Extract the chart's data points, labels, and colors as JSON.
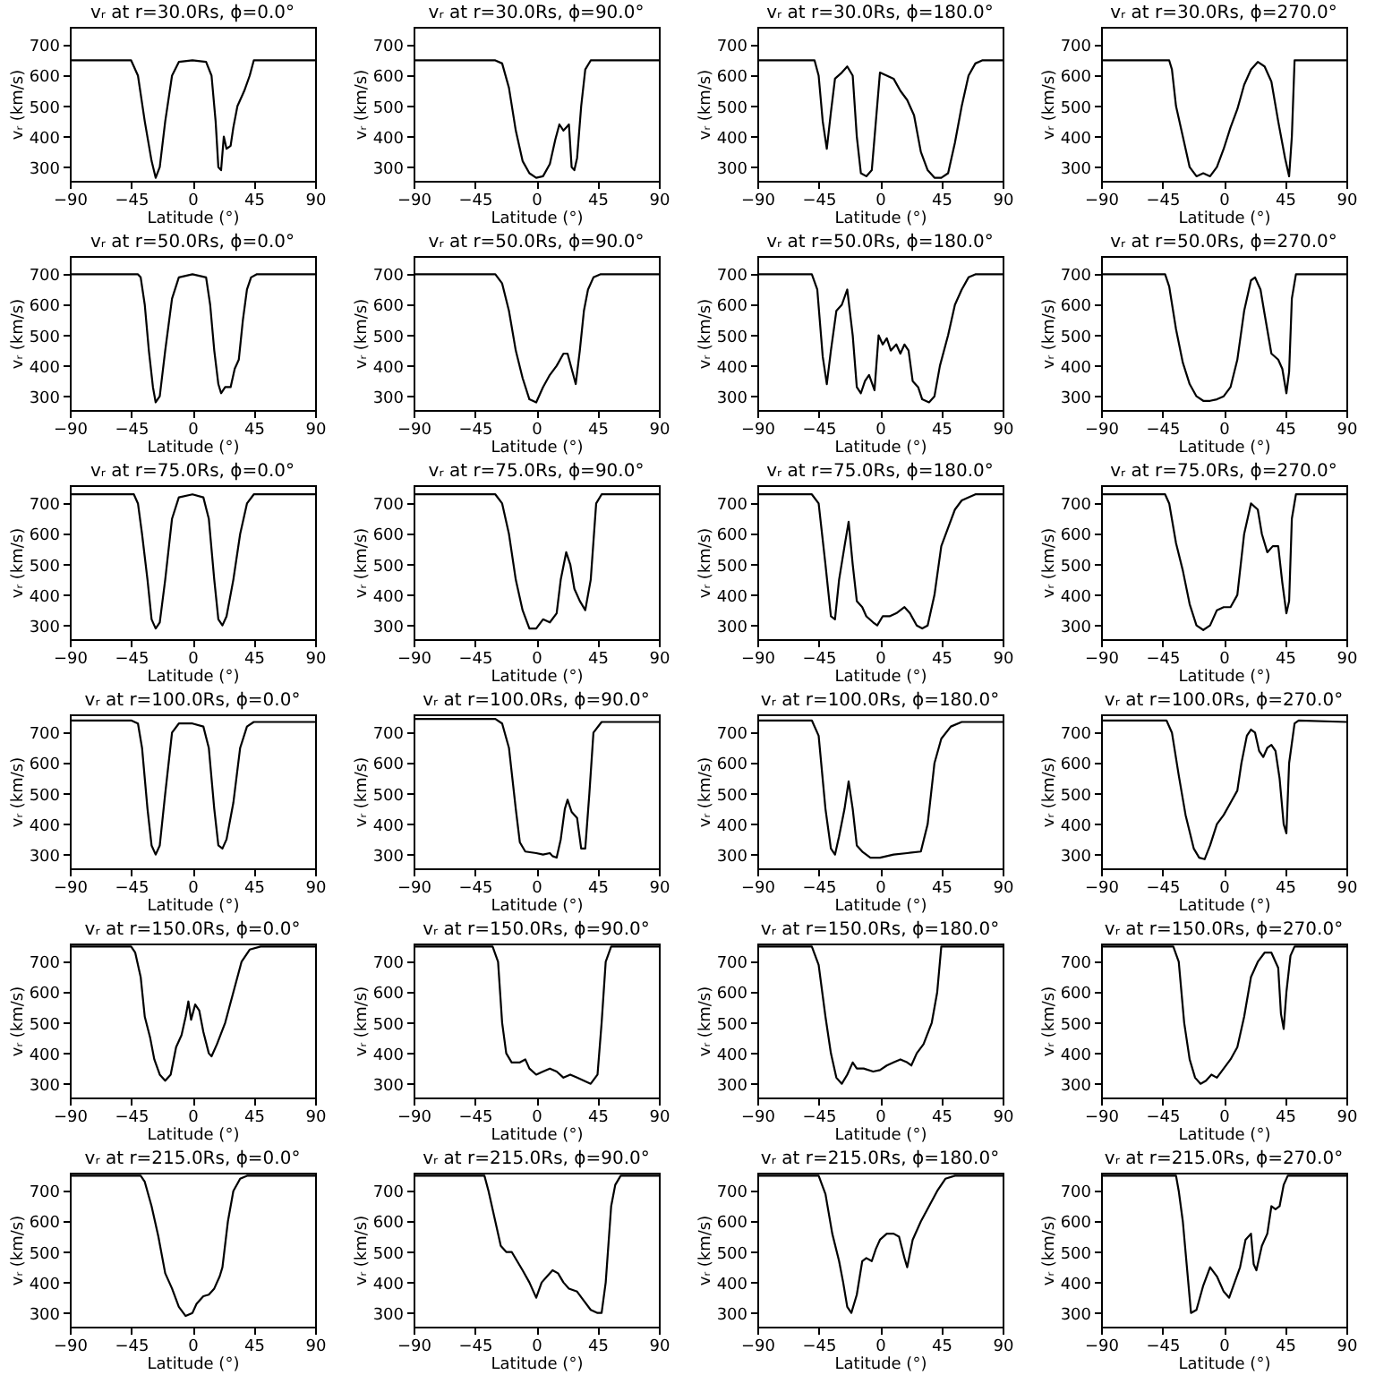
{
  "chart_data": [
    {
      "type": "line",
      "title": "vᵣ at r=30.0Rs, ϕ=0.0°",
      "xlabel": "Latitude (°)",
      "ylabel": "vᵣ (km/s)",
      "color": "#000000",
      "xlim": [
        -90,
        90
      ],
      "xticks": [
        -90,
        -45,
        0,
        45,
        90
      ],
      "ylim": [
        255,
        760
      ],
      "yticks": [
        300,
        400,
        500,
        600,
        700
      ],
      "x": [
        -90,
        -45,
        -40,
        -35,
        -30,
        -27,
        -24,
        -20,
        -15,
        -10,
        0,
        10,
        14,
        17,
        19,
        21,
        23,
        25,
        28,
        30,
        33,
        35,
        38,
        42,
        45,
        90
      ],
      "values": [
        650,
        650,
        600,
        450,
        320,
        265,
        300,
        450,
        600,
        645,
        650,
        645,
        600,
        450,
        300,
        290,
        400,
        360,
        370,
        430,
        500,
        520,
        550,
        600,
        650,
        650
      ]
    },
    {
      "type": "line",
      "title": "vᵣ at r=30.0Rs, ϕ=90.0°",
      "xlabel": "Latitude (°)",
      "ylabel": "vᵣ (km/s)",
      "color": "#000000",
      "xlim": [
        -90,
        90
      ],
      "xticks": [
        -90,
        -45,
        0,
        45,
        90
      ],
      "ylim": [
        255,
        760
      ],
      "yticks": [
        300,
        400,
        500,
        600,
        700
      ],
      "x": [
        -90,
        -30,
        -25,
        -20,
        -15,
        -10,
        -5,
        0,
        5,
        10,
        14,
        17,
        20,
        22,
        24,
        26,
        28,
        30,
        33,
        36,
        40,
        90
      ],
      "values": [
        650,
        650,
        640,
        560,
        420,
        320,
        280,
        265,
        270,
        310,
        390,
        440,
        420,
        430,
        440,
        300,
        290,
        330,
        500,
        620,
        650,
        650
      ]
    },
    {
      "type": "line",
      "title": "vᵣ at r=30.0Rs, ϕ=180.0°",
      "xlabel": "Latitude (°)",
      "ylabel": "vᵣ (km/s)",
      "color": "#000000",
      "xlim": [
        -90,
        90
      ],
      "xticks": [
        -90,
        -45,
        0,
        45,
        90
      ],
      "ylim": [
        255,
        760
      ],
      "yticks": [
        300,
        400,
        500,
        600,
        700
      ],
      "x": [
        -90,
        -48,
        -45,
        -42,
        -39,
        -36,
        -33,
        -28,
        -24,
        -20,
        -17,
        -14,
        -10,
        -6,
        -3,
        0,
        5,
        10,
        15,
        20,
        25,
        30,
        35,
        40,
        45,
        50,
        55,
        60,
        65,
        70,
        75,
        90
      ],
      "values": [
        650,
        650,
        600,
        450,
        360,
        480,
        590,
        610,
        630,
        600,
        400,
        280,
        270,
        290,
        450,
        610,
        600,
        590,
        550,
        520,
        470,
        350,
        290,
        265,
        265,
        280,
        380,
        500,
        600,
        640,
        650,
        650
      ]
    },
    {
      "type": "line",
      "title": "vᵣ at r=30.0Rs, ϕ=270.0°",
      "xlabel": "Latitude (°)",
      "ylabel": "vᵣ (km/s)",
      "color": "#000000",
      "xlim": [
        -90,
        90
      ],
      "xticks": [
        -90,
        -45,
        0,
        45,
        90
      ],
      "ylim": [
        255,
        760
      ],
      "yticks": [
        300,
        400,
        500,
        600,
        700
      ],
      "x": [
        -90,
        -40,
        -38,
        -35,
        -30,
        -25,
        -20,
        -15,
        -10,
        -5,
        0,
        5,
        10,
        15,
        20,
        25,
        30,
        35,
        40,
        45,
        48,
        50,
        52,
        90
      ],
      "values": [
        650,
        650,
        620,
        500,
        400,
        300,
        270,
        280,
        270,
        300,
        360,
        430,
        490,
        570,
        620,
        645,
        630,
        580,
        450,
        330,
        270,
        400,
        650,
        650
      ]
    },
    {
      "type": "line",
      "title": "vᵣ at r=50.0Rs, ϕ=0.0°",
      "xlabel": "Latitude (°)",
      "ylabel": "vᵣ (km/s)",
      "color": "#000000",
      "xlim": [
        -90,
        90
      ],
      "xticks": [
        -90,
        -45,
        0,
        45,
        90
      ],
      "ylim": [
        255,
        760
      ],
      "yticks": [
        300,
        400,
        500,
        600,
        700
      ],
      "x": [
        -90,
        -40,
        -38,
        -35,
        -32,
        -29,
        -27,
        -24,
        -20,
        -15,
        -10,
        0,
        10,
        13,
        16,
        19,
        21,
        24,
        28,
        31,
        34,
        37,
        40,
        43,
        47,
        90
      ],
      "values": [
        700,
        700,
        690,
        600,
        450,
        330,
        280,
        300,
        450,
        620,
        690,
        700,
        690,
        600,
        450,
        340,
        310,
        330,
        330,
        390,
        420,
        550,
        650,
        690,
        700,
        700
      ]
    },
    {
      "type": "line",
      "title": "vᵣ at r=50.0Rs, ϕ=90.0°",
      "xlabel": "Latitude (°)",
      "ylabel": "vᵣ (km/s)",
      "color": "#000000",
      "xlim": [
        -90,
        90
      ],
      "xticks": [
        -90,
        -45,
        0,
        45,
        90
      ],
      "ylim": [
        255,
        760
      ],
      "yticks": [
        300,
        400,
        500,
        600,
        700
      ],
      "x": [
        -90,
        -30,
        -25,
        -20,
        -15,
        -10,
        -5,
        0,
        5,
        10,
        15,
        20,
        23,
        26,
        29,
        32,
        35,
        38,
        42,
        47,
        90
      ],
      "values": [
        700,
        700,
        670,
        580,
        450,
        360,
        290,
        280,
        330,
        370,
        400,
        440,
        440,
        390,
        340,
        450,
        580,
        650,
        690,
        700,
        700
      ]
    },
    {
      "type": "line",
      "title": "vᵣ at r=50.0Rs, ϕ=180.0°",
      "xlabel": "Latitude (°)",
      "ylabel": "vᵣ (km/s)",
      "color": "#000000",
      "xlim": [
        -90,
        90
      ],
      "xticks": [
        -90,
        -45,
        0,
        45,
        90
      ],
      "ylim": [
        255,
        760
      ],
      "yticks": [
        300,
        400,
        500,
        600,
        700
      ],
      "x": [
        -90,
        -50,
        -46,
        -42,
        -39,
        -36,
        -32,
        -28,
        -24,
        -20,
        -17,
        -14,
        -11,
        -8,
        -4,
        -1,
        2,
        5,
        8,
        12,
        15,
        18,
        21,
        24,
        28,
        31,
        36,
        40,
        44,
        50,
        55,
        60,
        65,
        70,
        90
      ],
      "values": [
        700,
        700,
        650,
        430,
        340,
        450,
        580,
        600,
        650,
        500,
        330,
        310,
        350,
        370,
        320,
        500,
        470,
        490,
        450,
        470,
        440,
        470,
        450,
        350,
        330,
        290,
        280,
        300,
        400,
        500,
        600,
        650,
        690,
        700,
        700
      ]
    },
    {
      "type": "line",
      "title": "vᵣ at r=50.0Rs, ϕ=270.0°",
      "xlabel": "Latitude (°)",
      "ylabel": "vᵣ (km/s)",
      "color": "#000000",
      "xlim": [
        -90,
        90
      ],
      "xticks": [
        -90,
        -45,
        0,
        45,
        90
      ],
      "ylim": [
        255,
        760
      ],
      "yticks": [
        300,
        400,
        500,
        600,
        700
      ],
      "x": [
        -90,
        -43,
        -40,
        -35,
        -30,
        -25,
        -20,
        -15,
        -10,
        -5,
        0,
        5,
        10,
        15,
        20,
        23,
        27,
        30,
        35,
        40,
        43,
        46,
        48,
        50,
        53,
        90
      ],
      "values": [
        700,
        700,
        660,
        520,
        410,
        340,
        300,
        285,
        285,
        290,
        300,
        330,
        420,
        580,
        680,
        690,
        650,
        570,
        440,
        420,
        390,
        310,
        380,
        620,
        700,
        700
      ]
    },
    {
      "type": "line",
      "title": "vᵣ at r=75.0Rs, ϕ=0.0°",
      "xlabel": "Latitude (°)",
      "ylabel": "vᵣ (km/s)",
      "color": "#000000",
      "xlim": [
        -90,
        90
      ],
      "xticks": [
        -90,
        -45,
        0,
        45,
        90
      ],
      "ylim": [
        255,
        760
      ],
      "yticks": [
        300,
        400,
        500,
        600,
        700
      ],
      "x": [
        -90,
        -43,
        -40,
        -37,
        -33,
        -30,
        -27,
        -24,
        -20,
        -15,
        -10,
        0,
        8,
        12,
        16,
        19,
        22,
        25,
        30,
        35,
        40,
        45,
        90
      ],
      "values": [
        730,
        730,
        700,
        600,
        450,
        320,
        290,
        310,
        450,
        650,
        720,
        730,
        720,
        650,
        450,
        320,
        300,
        330,
        450,
        600,
        700,
        730,
        730
      ]
    },
    {
      "type": "line",
      "title": "vᵣ at r=75.0Rs, ϕ=90.0°",
      "xlabel": "Latitude (°)",
      "ylabel": "vᵣ (km/s)",
      "color": "#000000",
      "xlim": [
        -90,
        90
      ],
      "xticks": [
        -90,
        -45,
        0,
        45,
        90
      ],
      "ylim": [
        255,
        760
      ],
      "yticks": [
        300,
        400,
        500,
        600,
        700
      ],
      "x": [
        -90,
        -30,
        -25,
        -20,
        -15,
        -10,
        -5,
        0,
        5,
        10,
        15,
        18,
        22,
        25,
        28,
        32,
        36,
        40,
        44,
        48,
        90
      ],
      "values": [
        730,
        730,
        700,
        600,
        450,
        350,
        290,
        290,
        320,
        310,
        340,
        450,
        540,
        500,
        420,
        380,
        350,
        450,
        700,
        730,
        730
      ]
    },
    {
      "type": "line",
      "title": "vᵣ at r=75.0Rs, ϕ=180.0°",
      "xlabel": "Latitude (°)",
      "ylabel": "vᵣ (km/s)",
      "color": "#000000",
      "xlim": [
        -90,
        90
      ],
      "xticks": [
        -90,
        -45,
        0,
        45,
        90
      ],
      "ylim": [
        255,
        760
      ],
      "yticks": [
        300,
        400,
        500,
        600,
        700
      ],
      "x": [
        -90,
        -50,
        -45,
        -40,
        -36,
        -33,
        -30,
        -26,
        -23,
        -20,
        -17,
        -13,
        -10,
        -5,
        -2,
        2,
        7,
        12,
        18,
        22,
        27,
        31,
        35,
        40,
        45,
        50,
        55,
        60,
        70,
        90
      ],
      "values": [
        730,
        730,
        700,
        500,
        330,
        320,
        450,
        560,
        640,
        500,
        380,
        360,
        330,
        310,
        300,
        330,
        330,
        340,
        360,
        340,
        300,
        290,
        300,
        400,
        560,
        620,
        680,
        710,
        730,
        730
      ]
    },
    {
      "type": "line",
      "title": "vᵣ at r=75.0Rs, ϕ=270.0°",
      "xlabel": "Latitude (°)",
      "ylabel": "vᵣ (km/s)",
      "color": "#000000",
      "xlim": [
        -90,
        90
      ],
      "xticks": [
        -90,
        -45,
        0,
        45,
        90
      ],
      "ylim": [
        255,
        760
      ],
      "yticks": [
        300,
        400,
        500,
        600,
        700
      ],
      "x": [
        -90,
        -43,
        -40,
        -35,
        -30,
        -25,
        -20,
        -15,
        -10,
        -5,
        0,
        5,
        10,
        15,
        20,
        25,
        28,
        32,
        36,
        40,
        43,
        46,
        48,
        50,
        53,
        90
      ],
      "values": [
        730,
        730,
        700,
        570,
        480,
        370,
        300,
        285,
        300,
        350,
        360,
        360,
        400,
        600,
        700,
        680,
        600,
        540,
        560,
        560,
        440,
        340,
        380,
        650,
        730,
        730
      ]
    },
    {
      "type": "line",
      "title": "vᵣ at r=100.0Rs, ϕ=0.0°",
      "xlabel": "Latitude (°)",
      "ylabel": "vᵣ (km/s)",
      "color": "#000000",
      "xlim": [
        -90,
        90
      ],
      "xticks": [
        -90,
        -45,
        0,
        45,
        90
      ],
      "ylim": [
        255,
        760
      ],
      "yticks": [
        300,
        400,
        500,
        600,
        700
      ],
      "x": [
        -90,
        -45,
        -40,
        -37,
        -33,
        -30,
        -27,
        -24,
        -20,
        -15,
        -10,
        0,
        8,
        12,
        16,
        19,
        22,
        25,
        30,
        35,
        40,
        45,
        90
      ],
      "values": [
        740,
        740,
        730,
        650,
        450,
        330,
        300,
        330,
        500,
        700,
        730,
        730,
        720,
        650,
        450,
        330,
        320,
        350,
        470,
        650,
        720,
        735,
        735
      ]
    },
    {
      "type": "line",
      "title": "vᵣ at r=100.0Rs, ϕ=90.0°",
      "xlabel": "Latitude (°)",
      "ylabel": "vᵣ (km/s)",
      "color": "#000000",
      "xlim": [
        -90,
        90
      ],
      "xticks": [
        -90,
        -45,
        0,
        45,
        90
      ],
      "ylim": [
        255,
        760
      ],
      "yticks": [
        300,
        400,
        500,
        600,
        700
      ],
      "x": [
        -90,
        -30,
        -25,
        -20,
        -15,
        -12,
        -8,
        0,
        5,
        10,
        12,
        15,
        18,
        21,
        23,
        26,
        30,
        33,
        36,
        39,
        42,
        48,
        90
      ],
      "values": [
        745,
        745,
        730,
        650,
        450,
        340,
        310,
        305,
        300,
        305,
        295,
        290,
        350,
        450,
        480,
        440,
        420,
        320,
        320,
        500,
        700,
        735,
        735
      ]
    },
    {
      "type": "line",
      "title": "vᵣ at r=100.0Rs, ϕ=180.0°",
      "xlabel": "Latitude (°)",
      "ylabel": "vᵣ (km/s)",
      "color": "#000000",
      "xlim": [
        -90,
        90
      ],
      "xticks": [
        -90,
        -45,
        0,
        45,
        90
      ],
      "ylim": [
        255,
        760
      ],
      "yticks": [
        300,
        400,
        500,
        600,
        700
      ],
      "x": [
        -90,
        -50,
        -45,
        -40,
        -36,
        -33,
        -30,
        -26,
        -23,
        -20,
        -17,
        -13,
        -7,
        0,
        10,
        20,
        30,
        35,
        40,
        45,
        52,
        60,
        90
      ],
      "values": [
        740,
        740,
        690,
        450,
        320,
        300,
        360,
        450,
        540,
        450,
        330,
        310,
        290,
        290,
        300,
        305,
        310,
        400,
        600,
        680,
        720,
        735,
        735
      ]
    },
    {
      "type": "line",
      "title": "vᵣ at r=100.0Rs, ϕ=270.0°",
      "xlabel": "Latitude (°)",
      "ylabel": "vᵣ (km/s)",
      "color": "#000000",
      "xlim": [
        -90,
        90
      ],
      "xticks": [
        -90,
        -45,
        0,
        45,
        90
      ],
      "ylim": [
        255,
        760
      ],
      "yticks": [
        300,
        400,
        500,
        600,
        700
      ],
      "x": [
        -90,
        -42,
        -38,
        -33,
        -28,
        -22,
        -18,
        -14,
        -10,
        -5,
        0,
        5,
        10,
        13,
        17,
        20,
        23,
        26,
        29,
        32,
        35,
        38,
        41,
        44,
        46,
        48,
        52,
        55,
        90
      ],
      "values": [
        740,
        740,
        700,
        560,
        430,
        320,
        290,
        285,
        330,
        400,
        430,
        470,
        510,
        600,
        690,
        710,
        700,
        640,
        620,
        650,
        660,
        640,
        550,
        400,
        370,
        600,
        730,
        740,
        735
      ]
    },
    {
      "type": "line",
      "title": "vᵣ at r=150.0Rs, ϕ=0.0°",
      "xlabel": "Latitude (°)",
      "ylabel": "vᵣ (km/s)",
      "color": "#000000",
      "xlim": [
        -90,
        90
      ],
      "xticks": [
        -90,
        -45,
        0,
        45,
        90
      ],
      "ylim": [
        255,
        760
      ],
      "yticks": [
        300,
        400,
        500,
        600,
        700
      ],
      "x": [
        -90,
        -45,
        -42,
        -38,
        -35,
        -31,
        -28,
        -24,
        -20,
        -16,
        -12,
        -8,
        -5,
        -3,
        -1,
        2,
        5,
        8,
        12,
        14,
        18,
        24,
        30,
        36,
        42,
        50,
        90
      ],
      "values": [
        750,
        750,
        730,
        650,
        520,
        450,
        380,
        330,
        310,
        330,
        420,
        460,
        520,
        570,
        510,
        560,
        540,
        470,
        400,
        390,
        430,
        500,
        600,
        700,
        740,
        750,
        750
      ]
    },
    {
      "type": "line",
      "title": "vᵣ at r=150.0Rs, ϕ=90.0°",
      "xlabel": "Latitude (°)",
      "ylabel": "vᵣ (km/s)",
      "color": "#000000",
      "xlim": [
        -90,
        90
      ],
      "xticks": [
        -90,
        -45,
        0,
        45,
        90
      ],
      "ylim": [
        255,
        760
      ],
      "yticks": [
        300,
        400,
        500,
        600,
        700
      ],
      "x": [
        -90,
        -32,
        -28,
        -25,
        -22,
        -18,
        -12,
        -8,
        -5,
        0,
        5,
        10,
        15,
        20,
        25,
        30,
        35,
        40,
        45,
        48,
        51,
        55,
        90
      ],
      "values": [
        750,
        750,
        700,
        500,
        400,
        370,
        370,
        380,
        350,
        330,
        340,
        350,
        340,
        320,
        330,
        320,
        310,
        300,
        330,
        500,
        700,
        750,
        750
      ]
    },
    {
      "type": "line",
      "title": "vᵣ at r=150.0Rs, ϕ=180.0°",
      "xlabel": "Latitude (°)",
      "ylabel": "vᵣ (km/s)",
      "color": "#000000",
      "xlim": [
        -90,
        90
      ],
      "xticks": [
        -90,
        -45,
        0,
        45,
        90
      ],
      "ylim": [
        255,
        760
      ],
      "yticks": [
        300,
        400,
        500,
        600,
        700
      ],
      "x": [
        -90,
        -50,
        -45,
        -40,
        -36,
        -32,
        -28,
        -24,
        -20,
        -17,
        -12,
        -5,
        0,
        5,
        10,
        15,
        20,
        23,
        27,
        32,
        38,
        42,
        45,
        90
      ],
      "values": [
        750,
        750,
        690,
        520,
        400,
        320,
        300,
        330,
        370,
        350,
        350,
        340,
        345,
        360,
        370,
        380,
        370,
        360,
        400,
        430,
        500,
        600,
        750,
        750
      ]
    },
    {
      "type": "line",
      "title": "vᵣ at r=150.0Rs, ϕ=270.0°",
      "xlabel": "Latitude (°)",
      "ylabel": "vᵣ (km/s)",
      "color": "#000000",
      "xlim": [
        -90,
        90
      ],
      "xticks": [
        -90,
        -45,
        0,
        45,
        90
      ],
      "ylim": [
        255,
        760
      ],
      "yticks": [
        300,
        400,
        500,
        600,
        700
      ],
      "x": [
        -90,
        -37,
        -33,
        -29,
        -25,
        -21,
        -17,
        -13,
        -9,
        -5,
        0,
        5,
        10,
        15,
        20,
        25,
        30,
        35,
        40,
        42,
        44,
        46,
        49,
        52,
        90
      ],
      "values": [
        750,
        750,
        700,
        500,
        380,
        320,
        300,
        310,
        330,
        320,
        350,
        380,
        420,
        520,
        650,
        700,
        730,
        730,
        680,
        530,
        480,
        600,
        720,
        750,
        750
      ]
    },
    {
      "type": "line",
      "title": "vᵣ at r=215.0Rs, ϕ=0.0°",
      "xlabel": "Latitude (°)",
      "ylabel": "vᵣ (km/s)",
      "color": "#000000",
      "xlim": [
        -90,
        90
      ],
      "xticks": [
        -90,
        -45,
        0,
        45,
        90
      ],
      "ylim": [
        255,
        760
      ],
      "yticks": [
        300,
        400,
        500,
        600,
        700
      ],
      "x": [
        -90,
        -38,
        -35,
        -30,
        -25,
        -20,
        -15,
        -10,
        -5,
        0,
        3,
        8,
        12,
        16,
        20,
        22,
        26,
        30,
        35,
        40,
        90
      ],
      "values": [
        750,
        750,
        730,
        650,
        550,
        430,
        380,
        320,
        290,
        300,
        330,
        355,
        360,
        380,
        420,
        450,
        600,
        700,
        740,
        750,
        750
      ]
    },
    {
      "type": "line",
      "title": "vᵣ at r=215.0Rs, ϕ=90.0°",
      "xlabel": "Latitude (°)",
      "ylabel": "vᵣ (km/s)",
      "color": "#000000",
      "xlim": [
        -90,
        90
      ],
      "xticks": [
        -90,
        -45,
        0,
        45,
        90
      ],
      "ylim": [
        255,
        760
      ],
      "yticks": [
        300,
        400,
        500,
        600,
        700
      ],
      "x": [
        -90,
        -38,
        -35,
        -30,
        -26,
        -22,
        -18,
        -14,
        -10,
        -5,
        0,
        4,
        8,
        12,
        16,
        20,
        24,
        30,
        35,
        40,
        45,
        48,
        51,
        55,
        58,
        62,
        90
      ],
      "values": [
        750,
        750,
        700,
        600,
        520,
        500,
        500,
        470,
        440,
        400,
        350,
        400,
        420,
        440,
        430,
        400,
        380,
        370,
        340,
        310,
        300,
        300,
        400,
        650,
        720,
        750,
        750
      ]
    },
    {
      "type": "line",
      "title": "vᵣ at r=215.0Rs, ϕ=180.0°",
      "xlabel": "Latitude (°)",
      "ylabel": "vᵣ (km/s)",
      "color": "#000000",
      "xlim": [
        -90,
        90
      ],
      "xticks": [
        -90,
        -45,
        0,
        45,
        90
      ],
      "ylim": [
        255,
        760
      ],
      "yticks": [
        300,
        400,
        500,
        600,
        700
      ],
      "x": [
        -90,
        -45,
        -40,
        -35,
        -30,
        -27,
        -24,
        -21,
        -17,
        -13,
        -10,
        -6,
        -3,
        0,
        5,
        10,
        14,
        18,
        20,
        24,
        30,
        36,
        42,
        48,
        55,
        90
      ],
      "values": [
        750,
        750,
        690,
        560,
        470,
        400,
        320,
        300,
        360,
        470,
        480,
        470,
        510,
        540,
        560,
        560,
        550,
        480,
        450,
        540,
        600,
        650,
        700,
        740,
        750,
        750
      ]
    },
    {
      "type": "line",
      "title": "vᵣ at r=215.0Rs, ϕ=270.0°",
      "xlabel": "Latitude (°)",
      "ylabel": "vᵣ (km/s)",
      "color": "#000000",
      "xlim": [
        -90,
        90
      ],
      "xticks": [
        -90,
        -45,
        0,
        45,
        90
      ],
      "ylim": [
        255,
        760
      ],
      "yticks": [
        300,
        400,
        500,
        600,
        700
      ],
      "x": [
        -90,
        -35,
        -33,
        -30,
        -27,
        -24,
        -20,
        -15,
        -10,
        -5,
        0,
        4,
        8,
        12,
        16,
        20,
        22,
        24,
        28,
        32,
        35,
        38,
        41,
        44,
        47,
        90
      ],
      "values": [
        750,
        750,
        700,
        600,
        450,
        300,
        310,
        390,
        450,
        420,
        370,
        350,
        400,
        450,
        540,
        560,
        460,
        440,
        520,
        560,
        650,
        640,
        650,
        720,
        750,
        750
      ]
    }
  ]
}
